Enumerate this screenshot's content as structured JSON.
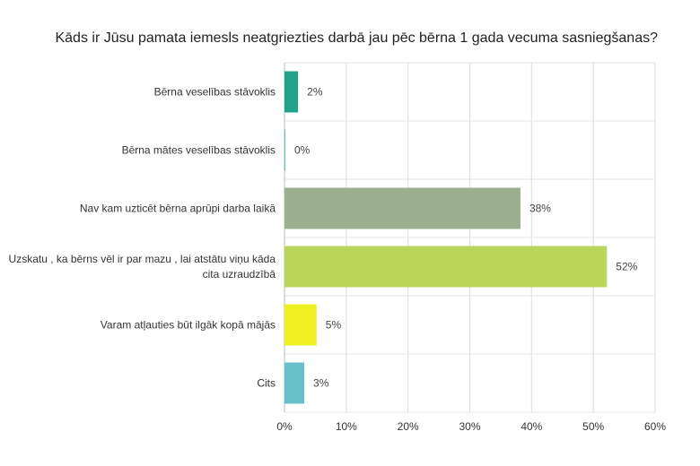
{
  "chart_data": {
    "type": "bar",
    "orientation": "horizontal",
    "title": "Kāds ir Jūsu pamata iemesls neatgriezties darbā jau pēc bērna 1 gada vecuma sasniegšanas?",
    "categories": [
      [
        "Bērna veselības stāvoklis"
      ],
      [
        "Bērna mātes veselības stāvoklis"
      ],
      [
        "Nav kam uzticēt bērna aprūpi darba laikā"
      ],
      [
        "Uzskatu , ka bērns vēl ir par mazu , lai atstātu viņu kāda",
        "cita uzraudzībā"
      ],
      [
        "Varam atļauties būt ilgāk kopā mājās"
      ],
      [
        "Cits"
      ]
    ],
    "values": [
      2.2,
      0.1,
      38.2,
      52.2,
      5.2,
      3.2
    ],
    "value_labels": [
      "2%",
      "0%",
      "38%",
      "52%",
      "5%",
      "3%"
    ],
    "colors": [
      "#1fa386",
      "#58c9a8",
      "#9bb08e",
      "#bad65a",
      "#eef021",
      "#67c1c8"
    ],
    "xlim": [
      0,
      60
    ],
    "xticks": [
      "0%",
      "10%",
      "20%",
      "30%",
      "40%",
      "50%",
      "60%"
    ],
    "xlabel": "",
    "ylabel": "",
    "grid": true,
    "legend": "none"
  }
}
